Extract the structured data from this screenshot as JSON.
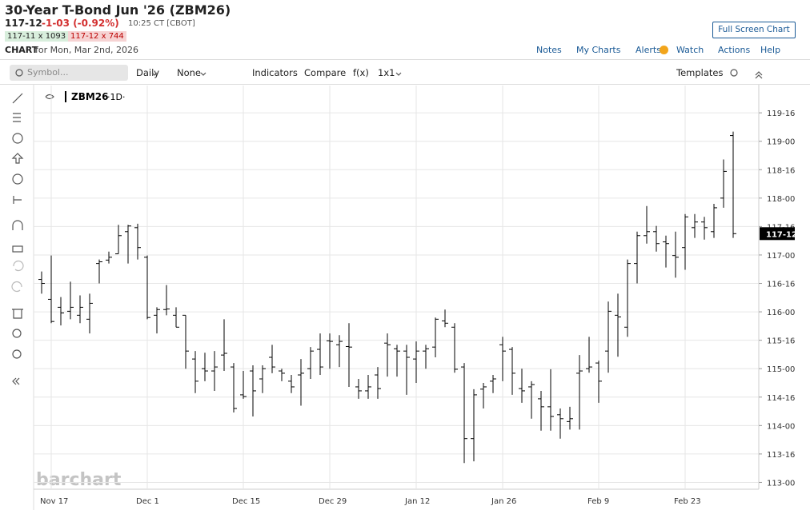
{
  "header": {
    "title": "30-Year T-Bond Jun '26 (ZBM26)",
    "last": "117-12",
    "change": "-1-03 (-0.92%)",
    "time": "10:25 CT [CBOT]",
    "bid": "117-11 x 1093",
    "ask": "117-12 x 744",
    "chart_label": "CHART",
    "chart_date": "for Mon, Mar 2nd, 2026",
    "full_screen": "Full Screen Chart"
  },
  "nav": [
    "Notes",
    "My Charts",
    "Alerts",
    "Watch",
    "Actions",
    "Help"
  ],
  "toolbar": {
    "symbol_placeholder": "Symbol...",
    "items": [
      "Daily",
      "None",
      "Indicators",
      "Compare",
      "f(x)",
      "1x1"
    ],
    "templates": "Templates"
  },
  "legend": {
    "symbol": "ZBM26",
    "interval": "·1D·"
  },
  "watermark": "barchart",
  "chart_data": {
    "type": "ohlc",
    "categories": [
      null,
      "Nov 17",
      null,
      null,
      null,
      null,
      null,
      null,
      null,
      null,
      null,
      "Dec 1",
      null,
      null,
      null,
      null,
      null,
      null,
      null,
      null,
      null,
      "Dec 15",
      null,
      null,
      null,
      null,
      null,
      null,
      null,
      null,
      "Dec 29",
      null,
      null,
      null,
      null,
      null,
      null,
      null,
      null,
      "Jan 12",
      null,
      null,
      null,
      null,
      null,
      null,
      null,
      null,
      "Jan 26",
      null,
      null,
      null,
      null,
      null,
      null,
      null,
      null,
      null,
      "Feb 9",
      null,
      null,
      null,
      null,
      null,
      null,
      null,
      null,
      "Feb 23",
      null,
      null,
      null,
      null,
      null
    ],
    "open": [
      116.57,
      116.22,
      116.08,
      116.01,
      115.94,
      115.87,
      116.85,
      116.91,
      117.02,
      117.41,
      117.48,
      116.96,
      115.94,
      116.04,
      115.94,
      115.94,
      115.17,
      115.0,
      114.96,
      115.24,
      115.03,
      114.54,
      114.96,
      114.82,
      115.2,
      114.96,
      114.78,
      114.89,
      115.0,
      115.34,
      115.49,
      115.42,
      115.39,
      114.68,
      114.61,
      114.89,
      115.45,
      115.35,
      115.31,
      115.17,
      115.31,
      115.38,
      115.84,
      115.73,
      115.03,
      113.77,
      114.64,
      114.78,
      115.42,
      115.34,
      114.65,
      114.68,
      114.47,
      114.33,
      114.19,
      114.07,
      114.92,
      115.0,
      115.1,
      115.31,
      115.94,
      115.73,
      116.85,
      117.34,
      117.41,
      117.23,
      116.99,
      117.13,
      117.48,
      117.58,
      117.41,
      118.0,
      119.1
    ],
    "high": [
      116.71,
      116.99,
      116.26,
      116.53,
      116.29,
      116.32,
      116.92,
      117.06,
      117.53,
      117.53,
      117.55,
      116.99,
      116.08,
      116.47,
      116.08,
      115.94,
      115.31,
      115.28,
      115.31,
      115.87,
      115.1,
      114.96,
      115.06,
      115.06,
      115.42,
      115.0,
      114.89,
      115.17,
      115.38,
      115.62,
      115.62,
      115.59,
      115.8,
      114.82,
      114.89,
      115.03,
      115.62,
      115.42,
      115.42,
      115.48,
      115.42,
      115.9,
      116.04,
      115.8,
      115.1,
      114.64,
      114.75,
      114.89,
      115.56,
      115.38,
      115.0,
      114.78,
      114.61,
      114.99,
      114.3,
      114.33,
      115.24,
      115.56,
      115.14,
      116.18,
      116.32,
      116.92,
      117.41,
      117.86,
      117.51,
      117.34,
      117.41,
      117.72,
      117.72,
      117.67,
      117.9,
      118.68,
      119.17
    ],
    "low": [
      116.32,
      115.8,
      115.76,
      115.87,
      115.8,
      115.62,
      116.5,
      116.85,
      117.02,
      116.85,
      116.92,
      115.87,
      115.62,
      115.94,
      115.73,
      115.0,
      114.57,
      114.78,
      114.61,
      114.96,
      114.23,
      114.47,
      114.16,
      114.57,
      114.92,
      114.78,
      114.57,
      114.35,
      114.82,
      114.89,
      115.0,
      115.03,
      114.68,
      114.47,
      114.47,
      114.47,
      114.86,
      114.86,
      114.54,
      114.75,
      115.0,
      115.2,
      115.73,
      114.93,
      113.34,
      113.37,
      114.3,
      114.57,
      114.78,
      114.54,
      114.4,
      114.12,
      113.91,
      113.91,
      113.77,
      113.93,
      113.93,
      114.93,
      114.4,
      114.93,
      115.21,
      115.56,
      116.5,
      117.2,
      117.06,
      116.78,
      116.6,
      116.74,
      117.3,
      117.27,
      117.3,
      117.83,
      117.3
    ],
    "close": [
      116.5,
      115.83,
      115.98,
      116.08,
      116.08,
      116.15,
      116.88,
      116.96,
      117.34,
      117.51,
      117.13,
      115.9,
      116.04,
      116.05,
      115.73,
      115.31,
      114.78,
      114.96,
      115.03,
      115.27,
      114.3,
      114.51,
      114.61,
      115.0,
      115.03,
      114.92,
      114.68,
      114.92,
      115.31,
      115.03,
      115.48,
      115.48,
      115.38,
      114.61,
      114.68,
      114.65,
      115.42,
      115.31,
      115.2,
      115.31,
      115.35,
      115.87,
      115.8,
      114.99,
      113.77,
      114.54,
      114.68,
      114.82,
      115.31,
      114.92,
      114.61,
      114.72,
      114.33,
      114.16,
      114.12,
      114.12,
      114.96,
      115.03,
      114.78,
      116.01,
      115.91,
      116.85,
      117.34,
      117.41,
      117.2,
      117.2,
      116.96,
      117.67,
      117.58,
      117.48,
      117.83,
      118.47,
      117.375
    ],
    "color": "#000000",
    "ylim": [
      112.88,
      119.98
    ],
    "yticks": [
      {
        "value": 119.5,
        "label": "119-16"
      },
      {
        "value": 119,
        "label": "119-00"
      },
      {
        "value": 118.5,
        "label": "118-16"
      },
      {
        "value": 118,
        "label": "118-00"
      },
      {
        "value": 117.5,
        "label": "117-16"
      },
      {
        "value": 117,
        "label": "117-00"
      },
      {
        "value": 116.5,
        "label": "116-16"
      },
      {
        "value": 116,
        "label": "116-00"
      },
      {
        "value": 115.5,
        "label": "115-16"
      },
      {
        "value": 115,
        "label": "115-00"
      },
      {
        "value": 114.5,
        "label": "114-16"
      },
      {
        "value": 114,
        "label": "114-00"
      },
      {
        "value": 113.5,
        "label": "113-16"
      },
      {
        "value": 113,
        "label": "113-00"
      }
    ],
    "last_price": {
      "value": 117.375,
      "label": "117-12"
    },
    "grid": true
  }
}
